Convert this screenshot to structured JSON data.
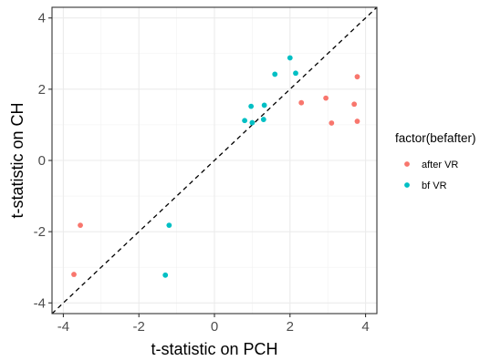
{
  "chart_data": {
    "type": "scatter",
    "xlabel": "t-statistic on PCH",
    "ylabel": "t-statistic on CH",
    "xlim": [
      -4.3,
      4.3
    ],
    "ylim": [
      -4.3,
      4.3
    ],
    "xticks": [
      -4,
      -2,
      0,
      2,
      4
    ],
    "yticks": [
      -4,
      -2,
      0,
      2,
      4
    ],
    "xtick_labels": [
      "-4",
      "-2",
      "0",
      "2",
      "4"
    ],
    "ytick_labels": [
      "-4",
      "-2",
      "0",
      "2",
      "4"
    ],
    "grid": true,
    "reference_line": "y = x (dashed)",
    "legend": {
      "title": "factor(befafter)",
      "placement": "right",
      "entries": [
        "after VR",
        "bf VR"
      ]
    },
    "series": [
      {
        "name": "after VR",
        "color": "#F8766D",
        "points": [
          [
            -3.55,
            -1.82
          ],
          [
            -3.72,
            -3.2
          ],
          [
            2.3,
            1.62
          ],
          [
            2.95,
            1.75
          ],
          [
            3.1,
            1.05
          ],
          [
            3.7,
            1.58
          ],
          [
            3.78,
            2.35
          ],
          [
            3.78,
            1.1
          ]
        ]
      },
      {
        "name": "bf VR",
        "color": "#00BFC4",
        "points": [
          [
            -1.2,
            -1.82
          ],
          [
            -1.3,
            -3.22
          ],
          [
            0.8,
            1.12
          ],
          [
            0.97,
            1.52
          ],
          [
            1.0,
            1.06
          ],
          [
            1.3,
            1.15
          ],
          [
            1.32,
            1.55
          ],
          [
            1.6,
            2.42
          ],
          [
            2.0,
            2.88
          ],
          [
            2.15,
            2.45
          ]
        ]
      }
    ]
  }
}
